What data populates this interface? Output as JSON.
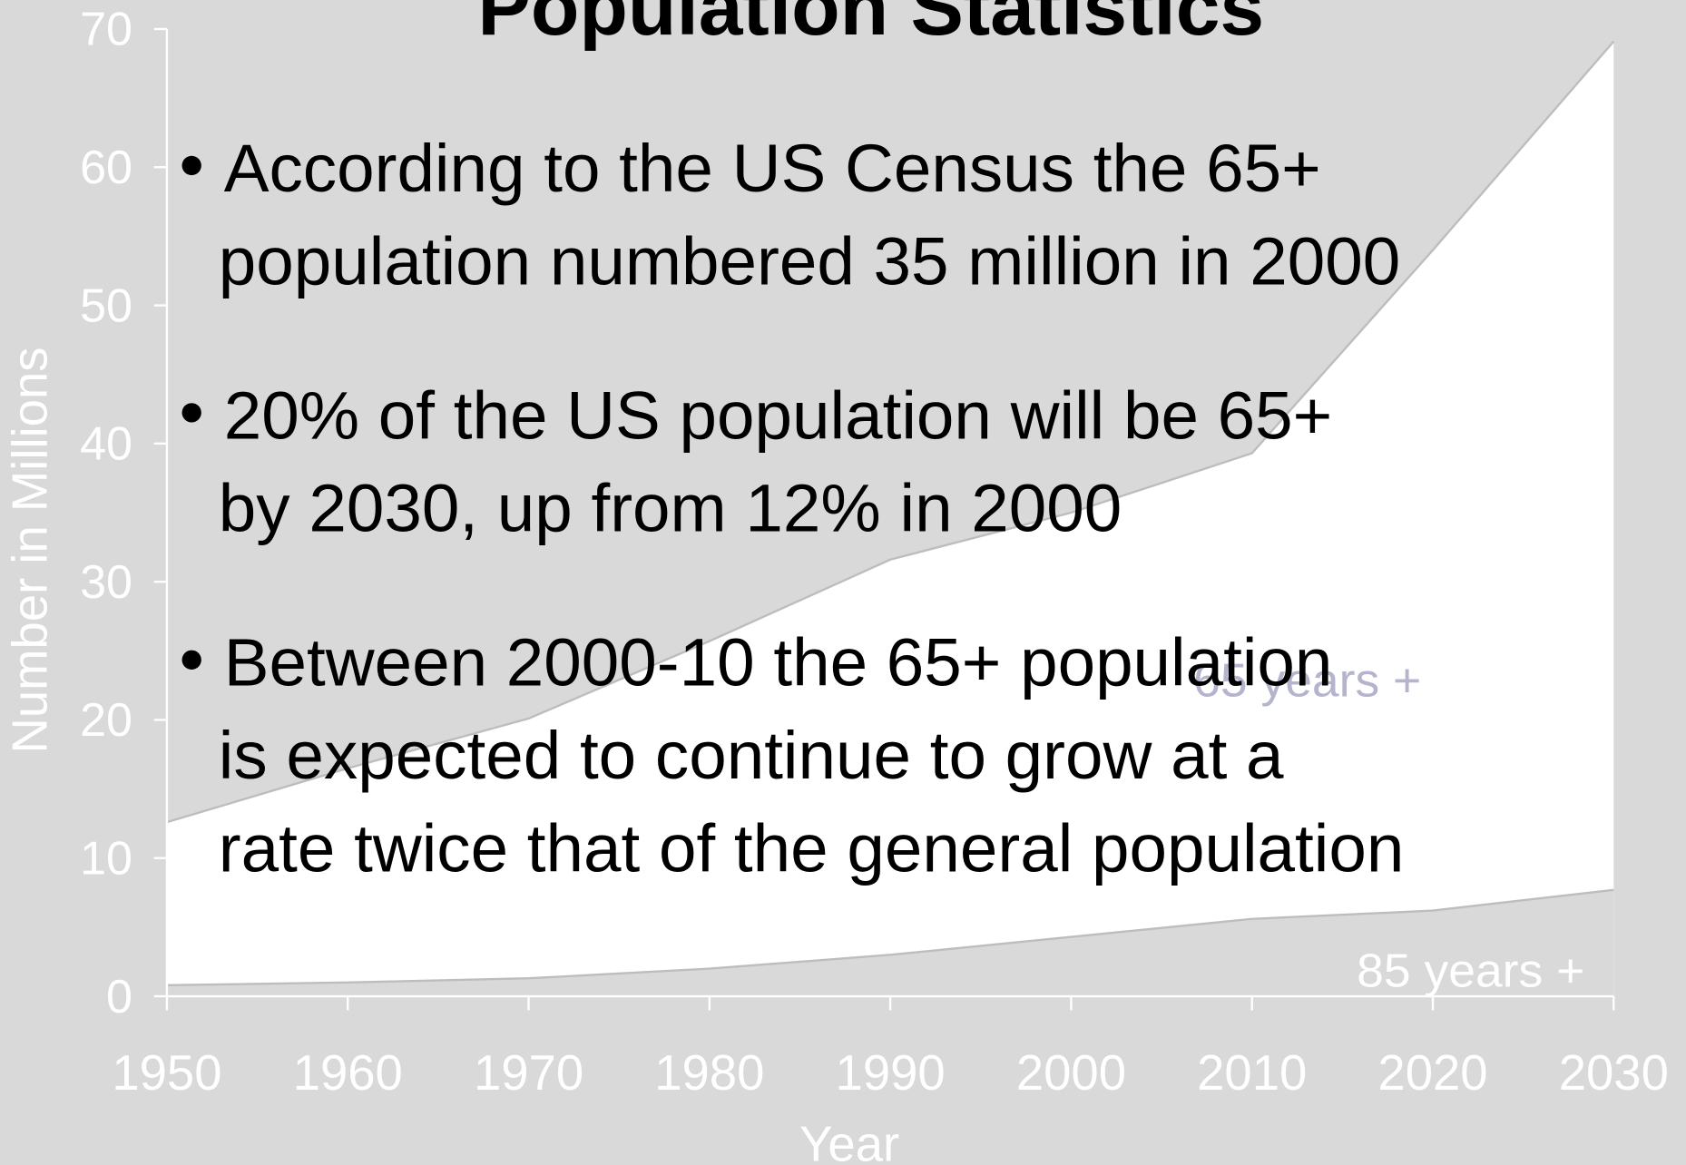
{
  "chart_data": {
    "type": "area",
    "title": "Population Statistics",
    "bullets": [
      [
        "According to the US Census the 65+",
        "population numbered 35 million in 2000"
      ],
      [
        "20% of the US population will be 65+",
        "by 2030, up from 12% in 2000"
      ],
      [
        "Between 2000-10 the 65+ population",
        "is expected to continue to grow at a",
        "rate twice that of the general population"
      ]
    ],
    "x_label": "Year",
    "y_label": "Number in Millions",
    "x": [
      1950,
      1960,
      1970,
      1980,
      1990,
      2000,
      2010,
      2020,
      2030
    ],
    "series": [
      {
        "name": "65 years +",
        "color": "#ffffff",
        "label_color": "#b4b4cc",
        "values": [
          12.6,
          16.5,
          20.1,
          25.7,
          31.6,
          35,
          39.3,
          54,
          69.1
        ]
      },
      {
        "name": "85 years +",
        "color": "#d9d9d9",
        "label_color": "#ffffff",
        "values": [
          0.8,
          1.0,
          1.3,
          2.0,
          3.0,
          4.3,
          5.6,
          6.2,
          7.7
        ]
      }
    ],
    "xlim": [
      1950,
      2030
    ],
    "xticks": [
      1950,
      1960,
      1970,
      1980,
      1990,
      2000,
      2010,
      2020,
      2030
    ],
    "ylim": [
      0,
      70
    ],
    "yticks": [
      0,
      10,
      20,
      30,
      40,
      50,
      60,
      70
    ]
  }
}
